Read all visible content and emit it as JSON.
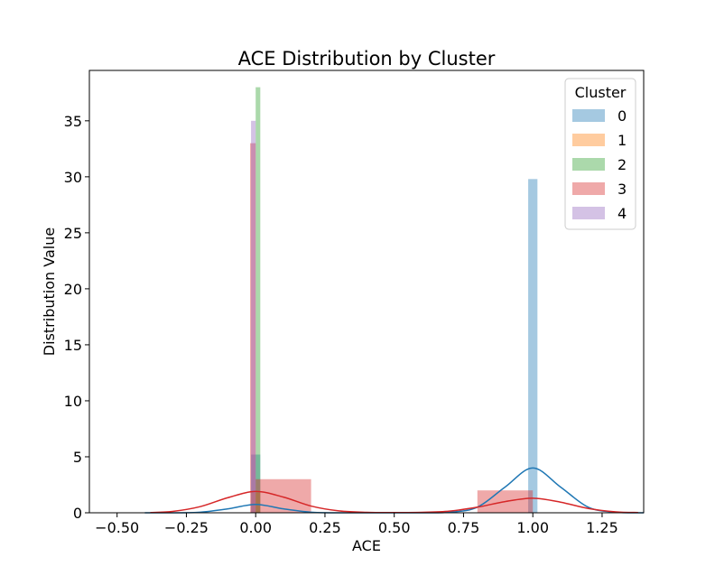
{
  "chart_data": {
    "type": "bar",
    "title": "ACE Distribution by Cluster",
    "xlabel": "ACE",
    "ylabel": "Distribution Value",
    "xlim": [
      -0.6,
      1.4
    ],
    "ylim": [
      0,
      39.5
    ],
    "xticks": [
      -0.5,
      -0.25,
      0.0,
      0.25,
      0.5,
      0.75,
      1.0,
      1.25
    ],
    "xtick_labels": [
      "−0.50",
      "−0.25",
      "0.00",
      "0.25",
      "0.50",
      "0.75",
      "1.00",
      "1.25"
    ],
    "yticks": [
      0,
      5,
      10,
      15,
      20,
      25,
      30,
      35
    ],
    "ytick_labels": [
      "0",
      "5",
      "10",
      "15",
      "20",
      "25",
      "30",
      "35"
    ],
    "grid": false,
    "legend": {
      "title": "Cluster",
      "placement": "top-right",
      "entries": [
        "0",
        "1",
        "2",
        "3",
        "4"
      ]
    },
    "series": [
      {
        "name": "0",
        "color": "#1f77b4",
        "bars": [
          {
            "x0": -0.0167,
            "x1": 0.0167,
            "value": 5.2
          },
          {
            "x0": 0.9833,
            "x1": 1.0167,
            "value": 29.8
          }
        ],
        "kde": {
          "x": [
            -0.4,
            -0.3,
            -0.2,
            -0.1,
            0.0,
            0.1,
            0.2,
            0.3,
            0.4,
            0.5,
            0.6,
            0.7,
            0.8,
            0.9,
            1.0,
            1.1,
            1.2,
            1.3,
            1.4
          ],
          "y": [
            0,
            0,
            0.05,
            0.35,
            0.75,
            0.35,
            0.05,
            0,
            0,
            0,
            0,
            0.05,
            0.5,
            2.3,
            4.0,
            2.3,
            0.5,
            0.05,
            0
          ]
        }
      },
      {
        "name": "1",
        "color": "#ff7f0e",
        "bars": [
          {
            "x0": -0.0167,
            "x1": 0.0167,
            "value": 1.8
          }
        ]
      },
      {
        "name": "2",
        "color": "#2ca02c",
        "bars": [
          {
            "x0": 0.0,
            "x1": 0.0167,
            "value": 38.0
          }
        ]
      },
      {
        "name": "3",
        "color": "#d62728",
        "bars": [
          {
            "x0": -0.02,
            "x1": 0.0,
            "value": 33.0
          },
          {
            "x0": 0.0,
            "x1": 0.2,
            "value": 3.0
          },
          {
            "x0": 0.8,
            "x1": 1.0,
            "value": 2.0
          }
        ],
        "kde": {
          "x": [
            -0.38,
            -0.3,
            -0.2,
            -0.1,
            0.0,
            0.1,
            0.2,
            0.3,
            0.4,
            0.5,
            0.6,
            0.7,
            0.8,
            0.9,
            1.0,
            1.1,
            1.2,
            1.3,
            1.38
          ],
          "y": [
            0.02,
            0.12,
            0.55,
            1.35,
            1.9,
            1.4,
            0.6,
            0.17,
            0.04,
            0.02,
            0.04,
            0.15,
            0.5,
            1.0,
            1.3,
            0.95,
            0.38,
            0.08,
            0.02
          ]
        }
      },
      {
        "name": "4",
        "color": "#9467bd",
        "bars": [
          {
            "x0": -0.0167,
            "x1": 0.0,
            "value": 35.0
          }
        ]
      }
    ]
  }
}
